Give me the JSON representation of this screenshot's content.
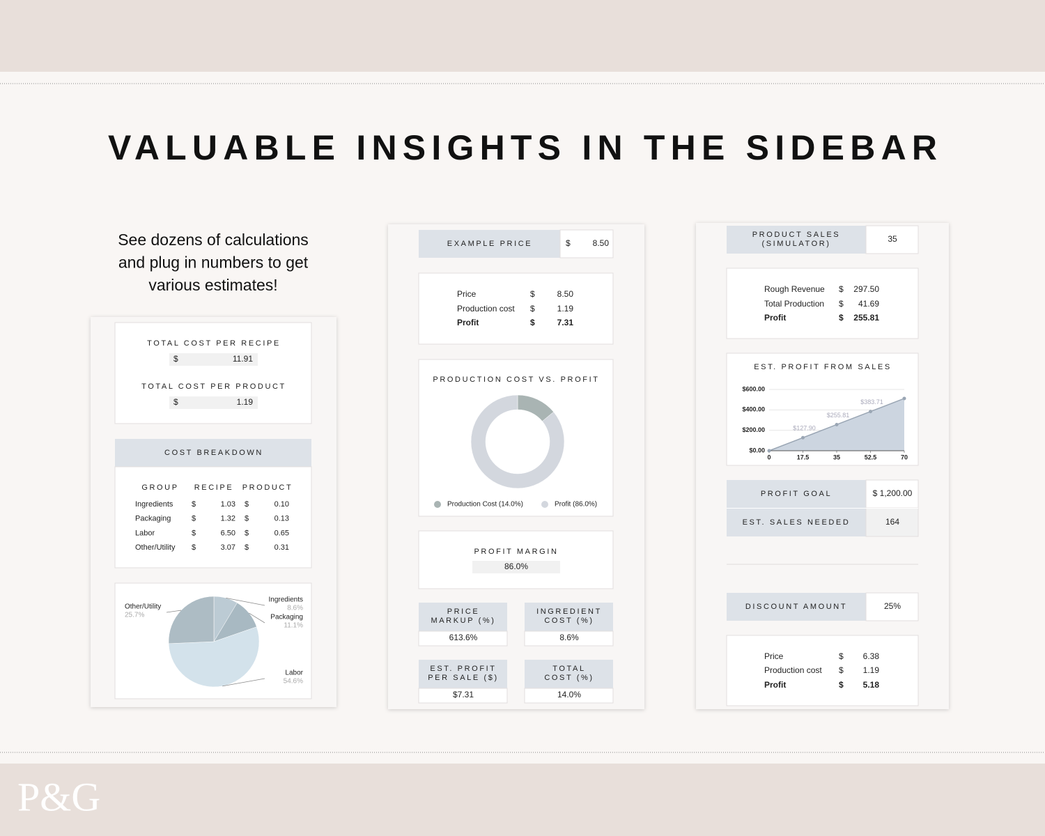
{
  "header": {
    "title": "VALUABLE INSIGHTS IN THE SIDEBAR",
    "intro": [
      "See dozens of calculations",
      "and plug in numbers to get",
      "various estimates!"
    ]
  },
  "logo": "P&G",
  "left_panel": {
    "totals": [
      {
        "label": "TOTAL COST PER RECIPE",
        "currency": "$",
        "value": "11.91"
      },
      {
        "label": "TOTAL COST PER PRODUCT",
        "currency": "$",
        "value": "1.19"
      }
    ],
    "breakdown": {
      "title": "COST BREAKDOWN",
      "columns": [
        "GROUP",
        "RECIPE",
        "PRODUCT"
      ],
      "rows": [
        [
          "Ingredients",
          "$",
          "1.03",
          "$",
          "0.10"
        ],
        [
          "Packaging",
          "$",
          "1.32",
          "$",
          "0.13"
        ],
        [
          "Labor",
          "$",
          "6.50",
          "$",
          "0.65"
        ],
        [
          "Other/Utility",
          "$",
          "3.07",
          "$",
          "0.31"
        ]
      ]
    }
  },
  "middle_panel": {
    "example_price": {
      "label": "EXAMPLE PRICE",
      "currency": "$",
      "value": "8.50"
    },
    "summary": [
      [
        "Price",
        "$",
        "8.50"
      ],
      [
        "Production cost",
        "$",
        "1.19"
      ],
      [
        "Profit",
        "$",
        "7.31"
      ]
    ],
    "profit_margin": {
      "label": "PROFIT MARGIN",
      "value": "86.0%"
    },
    "metrics": [
      {
        "label": [
          "PRICE",
          "MARKUP (%)"
        ],
        "value": "613.6%"
      },
      {
        "label": [
          "INGREDIENT",
          "COST (%)"
        ],
        "value": "8.6%"
      },
      {
        "label": [
          "EST. PROFIT",
          "PER SALE ($)"
        ],
        "value": "$7.31"
      },
      {
        "label": [
          "TOTAL",
          "COST (%)"
        ],
        "value": "14.0%"
      }
    ]
  },
  "right_panel": {
    "product_sales": {
      "label": [
        "PRODUCT SALES",
        "(SIMULATOR)"
      ],
      "value": "35"
    },
    "summary": [
      [
        "Rough Revenue",
        "$",
        "297.50"
      ],
      [
        "Total Production",
        "$",
        "41.69"
      ],
      [
        "Profit",
        "$",
        "255.81"
      ]
    ],
    "profit_goal": {
      "label": "PROFIT GOAL",
      "value": "$ 1,200.00"
    },
    "sales_needed": {
      "label": "EST. SALES NEEDED",
      "value": "164"
    },
    "discount": {
      "label": "DISCOUNT AMOUNT",
      "value": "25%"
    },
    "discount_summary": [
      [
        "Price",
        "$",
        "6.38"
      ],
      [
        "Production cost",
        "$",
        "1.19"
      ],
      [
        "Profit",
        "$",
        "5.18"
      ]
    ]
  },
  "chart_data": [
    {
      "type": "pie",
      "categories": [
        "Ingredients",
        "Packaging",
        "Labor",
        "Other/Utility"
      ],
      "values": [
        8.6,
        11.1,
        54.6,
        25.7
      ],
      "value_labels": [
        "8.6%",
        "11.1%",
        "54.6%",
        "25.7%"
      ],
      "colors": [
        "#bccbd4",
        "#a8b9c2",
        "#d3e2eb",
        "#adbcc4"
      ]
    },
    {
      "type": "donut",
      "title": "PRODUCTION COST VS. PROFIT",
      "categories": [
        "Production Cost (14.0%)",
        "Profit (86.0%)"
      ],
      "values": [
        14.0,
        86.0
      ],
      "colors": [
        "#a9b4b3",
        "#d3d7de"
      ]
    },
    {
      "type": "line",
      "title": "EST. PROFIT FROM SALES",
      "x": [
        0,
        17.5,
        35,
        52.5,
        70
      ],
      "values": [
        0,
        127.9,
        255.81,
        383.71,
        511.7
      ],
      "value_labels": [
        null,
        "$127.90",
        "$255.81",
        "$383.71",
        null
      ],
      "color": "#9aa6b4",
      "fill": "#ccd5e0",
      "xlim": [
        0,
        70
      ],
      "xticks": [
        0,
        17.5,
        35,
        52.5,
        70
      ],
      "ylim": [
        0,
        600
      ],
      "yticks": [
        {
          "value": 0,
          "label": "$0.00"
        },
        {
          "value": 200,
          "label": "$200.00"
        },
        {
          "value": 400,
          "label": "$400.00"
        },
        {
          "value": 600,
          "label": "$600.00"
        }
      ],
      "grid": true
    }
  ]
}
